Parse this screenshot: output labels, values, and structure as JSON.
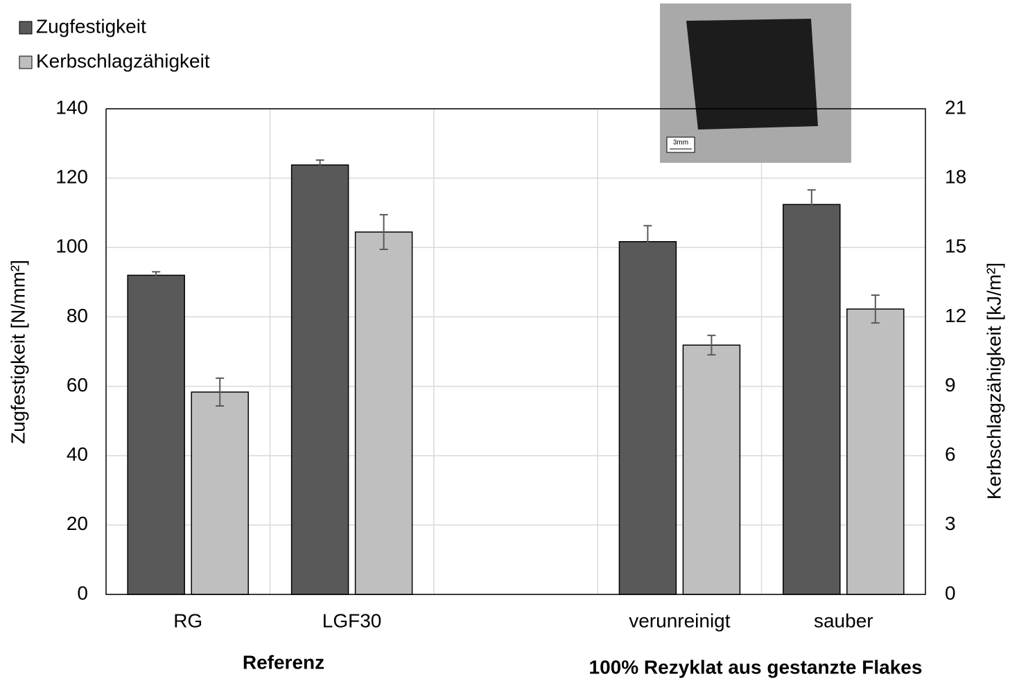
{
  "chart_data": {
    "type": "bar",
    "categories": [
      "RG",
      "LGF30",
      null,
      "verunreinigt",
      "sauber"
    ],
    "series": [
      {
        "name": "Zugfestigkeit",
        "color": "#595959",
        "values": [
          92,
          123.8,
          null,
          101.7,
          112.4
        ],
        "errors": [
          1,
          1.4,
          null,
          4.6,
          4.2
        ]
      },
      {
        "name": "Kerbschlagzähigkeit",
        "color": "#bfbfbf",
        "axis": "y2",
        "values": [
          8.75,
          15.67,
          null,
          10.78,
          12.34
        ],
        "errors": [
          0.6,
          0.75,
          null,
          0.42,
          0.6
        ]
      }
    ],
    "ylabel": "Zugfestigkeit [N/mm²]",
    "y2label": "Kerbschlagzähigkeit  [kJ/m²]",
    "ylim": [
      0,
      140
    ],
    "yticks": [
      0,
      20,
      40,
      60,
      80,
      100,
      120,
      140
    ],
    "y2lim": [
      0,
      21
    ],
    "y2ticks": [
      0,
      3,
      6,
      9,
      12,
      15,
      18,
      21
    ],
    "grid": true,
    "legend": "top-left",
    "group_labels": [
      "Referenz",
      "100% Rezyklat aus gestanzte Flakes"
    ],
    "inset_scale_label": "3mm"
  }
}
